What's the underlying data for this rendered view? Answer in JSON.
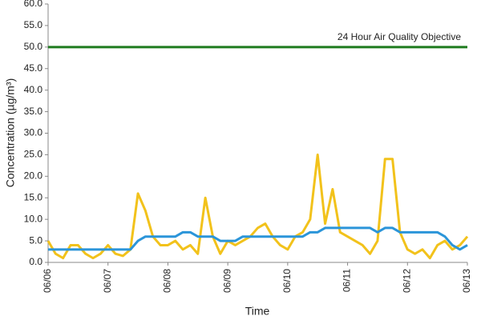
{
  "chart_data": {
    "type": "line",
    "y_label": "Concentration (µg/m³)",
    "x_label": "Time",
    "xlim": [
      0,
      7
    ],
    "xticks": [
      {
        "value": 0,
        "label": "06/06"
      },
      {
        "value": 1,
        "label": "06/07"
      },
      {
        "value": 2,
        "label": "06/08"
      },
      {
        "value": 3,
        "label": "06/09"
      },
      {
        "value": 4,
        "label": "06/10"
      },
      {
        "value": 5,
        "label": "06/11"
      },
      {
        "value": 6,
        "label": "06/12"
      },
      {
        "value": 7,
        "label": "06/13"
      }
    ],
    "ylim": [
      0,
      60
    ],
    "yticks": [
      {
        "value": 0,
        "label": "0.0"
      },
      {
        "value": 5,
        "label": "5.0"
      },
      {
        "value": 10,
        "label": "10.0"
      },
      {
        "value": 15,
        "label": "15.0"
      },
      {
        "value": 20,
        "label": "20.0"
      },
      {
        "value": 25,
        "label": "25.0"
      },
      {
        "value": 30,
        "label": "30.0"
      },
      {
        "value": 35,
        "label": "35.0"
      },
      {
        "value": 40,
        "label": "40.0"
      },
      {
        "value": 45,
        "label": "45.0"
      },
      {
        "value": 50,
        "label": "50.0"
      },
      {
        "value": 55,
        "label": "55.0"
      },
      {
        "value": 60,
        "label": "60.0"
      }
    ],
    "objective": {
      "value": 50,
      "label": "24 Hour Air Quality Objective",
      "color": "#1e7b1e"
    },
    "x": [
      0,
      0.125,
      0.25,
      0.375,
      0.5,
      0.625,
      0.75,
      0.875,
      1,
      1.125,
      1.25,
      1.375,
      1.5,
      1.625,
      1.75,
      1.875,
      2,
      2.125,
      2.25,
      2.375,
      2.5,
      2.625,
      2.75,
      2.875,
      3,
      3.125,
      3.25,
      3.375,
      3.5,
      3.625,
      3.75,
      3.875,
      4,
      4.125,
      4.25,
      4.375,
      4.5,
      4.625,
      4.75,
      4.875,
      5,
      5.125,
      5.25,
      5.375,
      5.5,
      5.625,
      5.75,
      5.875,
      6,
      6.125,
      6.25,
      6.375,
      6.5,
      6.625,
      6.75,
      6.875,
      7
    ],
    "series": [
      {
        "color": "#f2c21b",
        "values": [
          5,
          2,
          1,
          4,
          4,
          2,
          1,
          2,
          4,
          2,
          1.5,
          3,
          16,
          12,
          6,
          4,
          4,
          5,
          3,
          4,
          2,
          15,
          6,
          2,
          5,
          4,
          5,
          6,
          8,
          9,
          6,
          4,
          3,
          6,
          7,
          10,
          25,
          9,
          17,
          7,
          6,
          5,
          4,
          2,
          5,
          24,
          24,
          7,
          3,
          2,
          3,
          1,
          4,
          5,
          3,
          4,
          6
        ]
      },
      {
        "color": "#2b95d9",
        "values": [
          3,
          3,
          3,
          3,
          3,
          3,
          3,
          3,
          3,
          3,
          3,
          3,
          5,
          6,
          6,
          6,
          6,
          6,
          7,
          7,
          6,
          6,
          6,
          5,
          5,
          5,
          6,
          6,
          6,
          6,
          6,
          6,
          6,
          6,
          6,
          7,
          7,
          8,
          8,
          8,
          8,
          8,
          8,
          8,
          7,
          8,
          8,
          7,
          7,
          7,
          7,
          7,
          7,
          6,
          4,
          3,
          4
        ]
      }
    ]
  }
}
